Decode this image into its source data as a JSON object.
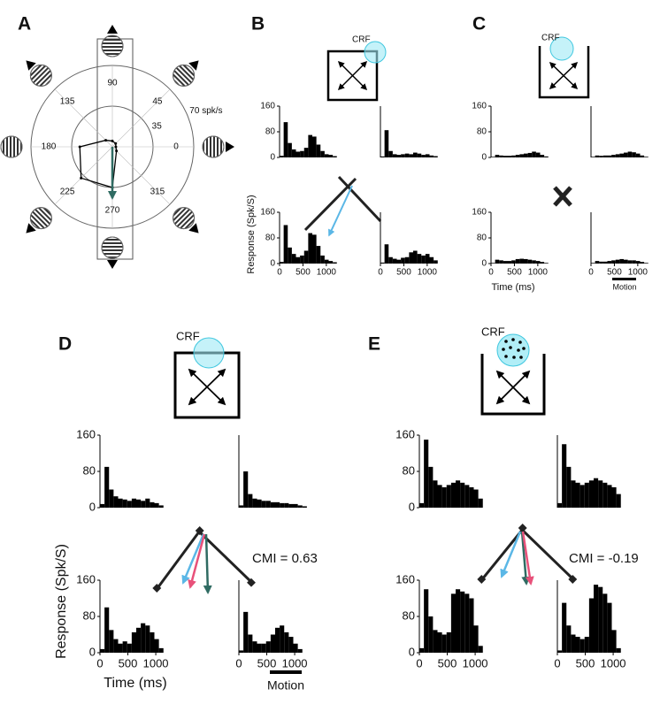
{
  "panels": [
    {
      "label": "A",
      "angles": [
        0,
        45,
        90,
        135,
        180,
        225,
        270,
        315
      ],
      "rlim": [
        0,
        70
      ],
      "rticks": [
        35,
        {
          "value": 70,
          "label": "70 spk/s"
        }
      ],
      "responses": [
        3,
        4,
        5,
        8,
        28,
        38,
        35,
        5
      ]
    },
    {
      "label": "B",
      "stimulus_label": "CRF",
      "ylabel": "Response (Spk/S)",
      "ylim": [
        0,
        160
      ],
      "yticks": [
        0,
        80,
        160
      ],
      "xlim": [
        0,
        1400
      ],
      "xticks": [
        0,
        500,
        1000
      ],
      "histograms": [
        [
          5,
          110,
          45,
          25,
          18,
          20,
          30,
          70,
          65,
          40,
          20,
          10,
          8,
          4,
          0,
          0
        ],
        [
          3,
          85,
          20,
          10,
          8,
          10,
          12,
          10,
          15,
          12,
          8,
          10,
          6,
          4,
          0,
          0
        ],
        [
          5,
          120,
          50,
          30,
          20,
          25,
          40,
          95,
          90,
          55,
          25,
          12,
          8,
          4,
          0,
          0
        ],
        [
          3,
          60,
          20,
          15,
          12,
          18,
          20,
          35,
          40,
          30,
          25,
          30,
          20,
          10,
          0,
          0
        ]
      ]
    },
    {
      "label": "C",
      "stimulus_label": "CRF",
      "xlabel": "Time (ms)",
      "motion_label": "Motion",
      "ylim": [
        0,
        160
      ],
      "yticks": [
        0,
        80,
        160
      ],
      "xlim": [
        0,
        1400
      ],
      "xticks": [
        0,
        500,
        1000
      ],
      "histograms": [
        [
          2,
          8,
          6,
          5,
          5,
          6,
          8,
          10,
          12,
          14,
          18,
          15,
          8,
          3,
          0,
          0
        ],
        [
          2,
          6,
          5,
          6,
          6,
          8,
          10,
          12,
          15,
          18,
          16,
          12,
          6,
          2,
          0,
          0
        ],
        [
          2,
          12,
          10,
          8,
          8,
          10,
          14,
          15,
          14,
          12,
          10,
          8,
          5,
          2,
          0,
          0
        ],
        [
          2,
          8,
          6,
          6,
          8,
          10,
          12,
          14,
          12,
          10,
          10,
          8,
          5,
          2,
          0,
          0
        ]
      ]
    },
    {
      "label": "D",
      "stimulus_label": "CRF",
      "cmi_label": "CMI = 0.63",
      "ylabel": "Response (Spk/S)",
      "xlabel": "Time (ms)",
      "motion_label": "Motion",
      "ylim": [
        0,
        160
      ],
      "yticks": [
        0,
        80,
        160
      ],
      "xlim": [
        0,
        1300
      ],
      "xticks": [
        0,
        500,
        1000
      ],
      "histograms": [
        [
          8,
          90,
          40,
          25,
          20,
          18,
          15,
          20,
          18,
          15,
          20,
          12,
          10,
          5,
          0,
          0
        ],
        [
          5,
          80,
          30,
          20,
          18,
          15,
          15,
          12,
          12,
          10,
          10,
          8,
          8,
          5,
          3,
          0
        ],
        [
          8,
          100,
          50,
          30,
          20,
          25,
          20,
          45,
          55,
          65,
          60,
          45,
          30,
          10,
          0,
          0
        ],
        [
          5,
          90,
          40,
          25,
          20,
          20,
          25,
          40,
          55,
          60,
          45,
          35,
          20,
          8,
          0,
          0
        ]
      ]
    },
    {
      "label": "E",
      "stimulus_label": "CRF",
      "cmi_label": "CMI = -0.19",
      "ylim": [
        0,
        160
      ],
      "yticks": [
        0,
        80,
        160
      ],
      "xlim": [
        0,
        1300
      ],
      "xticks": [
        0,
        500,
        1000
      ],
      "histograms": [
        [
          10,
          150,
          90,
          60,
          50,
          45,
          50,
          55,
          60,
          55,
          50,
          45,
          40,
          20,
          0,
          0
        ],
        [
          10,
          140,
          90,
          60,
          55,
          50,
          55,
          60,
          65,
          60,
          55,
          50,
          45,
          30,
          0,
          0
        ],
        [
          10,
          140,
          80,
          50,
          45,
          40,
          45,
          130,
          140,
          135,
          130,
          120,
          60,
          15,
          0,
          0
        ],
        [
          5,
          110,
          60,
          40,
          35,
          30,
          35,
          120,
          150,
          145,
          130,
          110,
          50,
          10,
          0,
          0
        ]
      ]
    }
  ]
}
